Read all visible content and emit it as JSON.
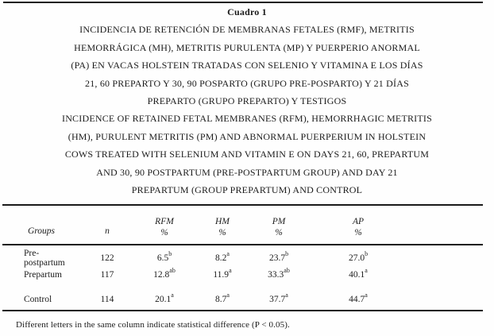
{
  "caption": {
    "lines": [
      "Cuadro 1",
      "INCIDENCIA DE RETENCIÓN DE MEMBRANAS FETALES (RMF), METRITIS",
      "HEMORRÁGICA (MH), METRITIS PURULENTA (MP) Y PUERPERIO ANORMAL",
      "(PA) EN VACAS HOLSTEIN TRATADAS CON SELENIO Y VITAMINA E LOS DÍAS",
      "21, 60 PREPARTO Y 30, 90 POSPARTO (GRUPO PRE-POSPARTO) Y 21 DÍAS",
      "PREPARTO (GRUPO PREPARTO) Y TESTIGOS",
      "INCIDENCE OF RETAINED FETAL MEMBRANES (RFM), HEMORRHAGIC METRITIS",
      "(HM), PURULENT METRITIS (PM) AND ABNORMAL PUERPERIUM IN HOLSTEIN",
      "COWS TREATED WITH SELENIUM AND VITAMIN E ON DAYS 21, 60, PREPARTUM",
      "AND 30, 90 POSTPARTUM (PRE-POSTPARTUM GROUP) AND DAY 21",
      "PREPARTUM (GROUP PREPARTUM) AND CONTROL"
    ]
  },
  "table": {
    "headers": {
      "groups": "Groups",
      "n": "n",
      "rfm": "RFM",
      "rfm_unit": "%",
      "hm": "HM",
      "hm_unit": "%",
      "pm": "PM",
      "pm_unit": "%",
      "ap": "AP",
      "ap_unit": "%"
    },
    "rows": [
      {
        "group": "Pre-postpartum",
        "n": "122",
        "rfm": "6.5",
        "rfm_sup": "b",
        "hm": "8.2",
        "hm_sup": "a",
        "pm": "23.7",
        "pm_sup": "b",
        "ap": "27.0",
        "ap_sup": "b"
      },
      {
        "group": "Prepartum",
        "n": "117",
        "rfm": "12.8",
        "rfm_sup": "ab",
        "hm": "11.9",
        "hm_sup": "a",
        "pm": "33.3",
        "pm_sup": "ab",
        "ap": "40.1",
        "ap_sup": "a"
      },
      {
        "group": "Control",
        "n": "114",
        "rfm": "20.1",
        "rfm_sup": "a",
        "hm": "8.7",
        "hm_sup": "a",
        "pm": "37.7",
        "pm_sup": "a",
        "ap": "44.7",
        "ap_sup": "a"
      }
    ]
  },
  "footnote": "Different letters in the same column indicate statistical difference (P < 0.05)."
}
